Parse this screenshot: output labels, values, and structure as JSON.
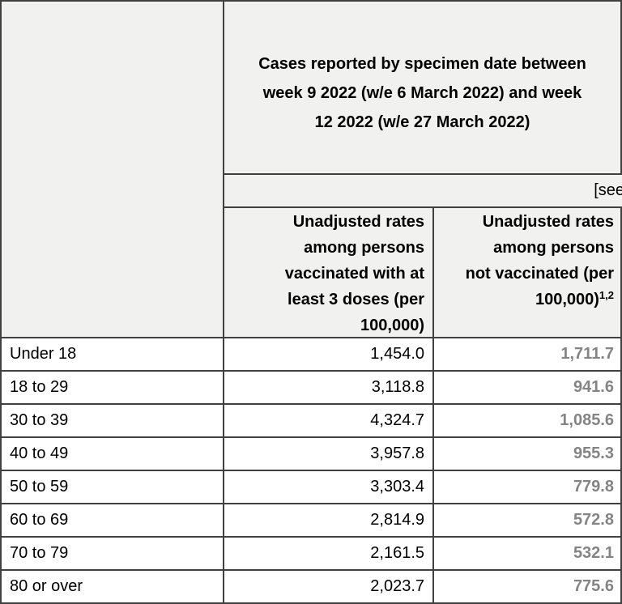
{
  "table": {
    "title_header": {
      "lines": [
        "Cases reported by specimen date between",
        "week 9 2022 (w/e 6 March 2022) and week",
        "12 2022 (w/e 27 March 2022)"
      ]
    },
    "see_note": "[see",
    "column_headers": {
      "vaccinated": {
        "lines": [
          "Unadjusted rates",
          "among persons",
          "vaccinated with at",
          "least 3 doses (per",
          "100,000)"
        ]
      },
      "unvaccinated": {
        "lines": [
          "Unadjusted rates",
          "among persons",
          "not vaccinated (per"
        ],
        "last_line": "100,000)",
        "superscript": "1,2"
      }
    },
    "rows": [
      {
        "label": "Under 18",
        "vaccinated_rate": "1,454.0",
        "unvaccinated_rate": "1,711.7"
      },
      {
        "label": "18 to 29",
        "vaccinated_rate": "3,118.8",
        "unvaccinated_rate": "941.6"
      },
      {
        "label": "30 to 39",
        "vaccinated_rate": "4,324.7",
        "unvaccinated_rate": "1,085.6"
      },
      {
        "label": "40 to 49",
        "vaccinated_rate": "3,957.8",
        "unvaccinated_rate": "955.3"
      },
      {
        "label": "50 to 59",
        "vaccinated_rate": "3,303.4",
        "unvaccinated_rate": "779.8"
      },
      {
        "label": "60 to 69",
        "vaccinated_rate": "2,814.9",
        "unvaccinated_rate": "572.8"
      },
      {
        "label": "70 to 79",
        "vaccinated_rate": "2,161.5",
        "unvaccinated_rate": "532.1"
      },
      {
        "label": "80 or over",
        "vaccinated_rate": "2,023.7",
        "unvaccinated_rate": "775.6"
      }
    ],
    "colors": {
      "header_background": "#f1f1ef",
      "border": "#404040",
      "unvaccinated_value_text": "#848484",
      "text": "#000000"
    }
  }
}
